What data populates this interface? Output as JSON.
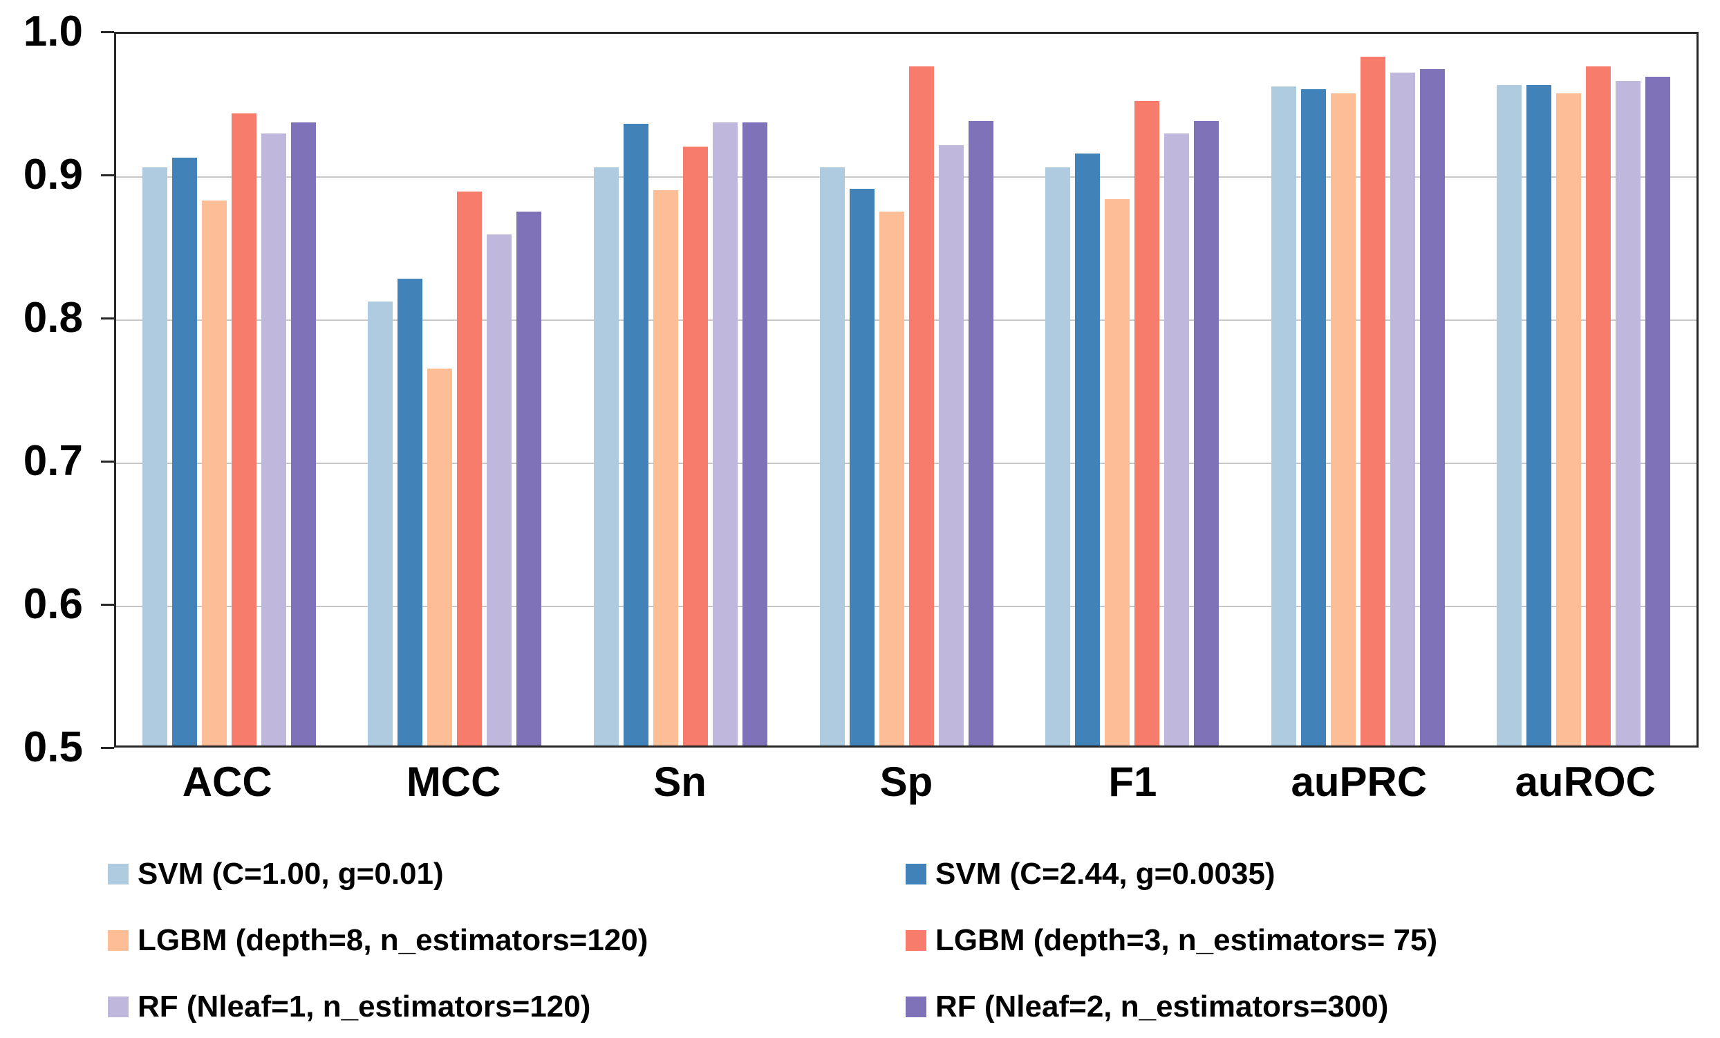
{
  "chart_data": {
    "type": "bar",
    "title": "",
    "xlabel": "",
    "ylabel": "",
    "categories": [
      "ACC",
      "MCC",
      "Sn",
      "Sp",
      "F1",
      "auPRC",
      "auROC"
    ],
    "series": [
      {
        "name": "SVM (C=1.00, g=0.01)",
        "color": "#AECBE0",
        "values": [
          0.906,
          0.812,
          0.906,
          0.906,
          0.906,
          0.963,
          0.964
        ]
      },
      {
        "name": "SVM (C=2.44, g=0.0035)",
        "color": "#4183B8",
        "values": [
          0.913,
          0.828,
          0.937,
          0.891,
          0.916,
          0.961,
          0.964
        ]
      },
      {
        "name": "LGBM (depth=8, n_estimators=120)",
        "color": "#FDBD96",
        "values": [
          0.883,
          0.765,
          0.89,
          0.875,
          0.884,
          0.958,
          0.958
        ]
      },
      {
        "name": "LGBM (depth=3, n_estimators= 75)",
        "color": "#F87C6C",
        "values": [
          0.944,
          0.889,
          0.921,
          0.977,
          0.953,
          0.984,
          0.977
        ]
      },
      {
        "name": "RF (Nleaf=1, n_estimators=120)",
        "color": "#C0B7DC",
        "values": [
          0.93,
          0.859,
          0.938,
          0.922,
          0.93,
          0.973,
          0.967
        ]
      },
      {
        "name": "RF (Nleaf=2, n_estimators=300)",
        "color": "#8072B8",
        "values": [
          0.938,
          0.875,
          0.938,
          0.939,
          0.939,
          0.975,
          0.97
        ]
      }
    ],
    "ylim": [
      0.5,
      1.0
    ],
    "yticks": [
      "1.0",
      "0.9",
      "0.8",
      "0.7",
      "0.6",
      "0.5"
    ],
    "grid": true,
    "legend_position": "bottom",
    "axis_color": "#262626",
    "grid_color": "#C6C6C6"
  }
}
